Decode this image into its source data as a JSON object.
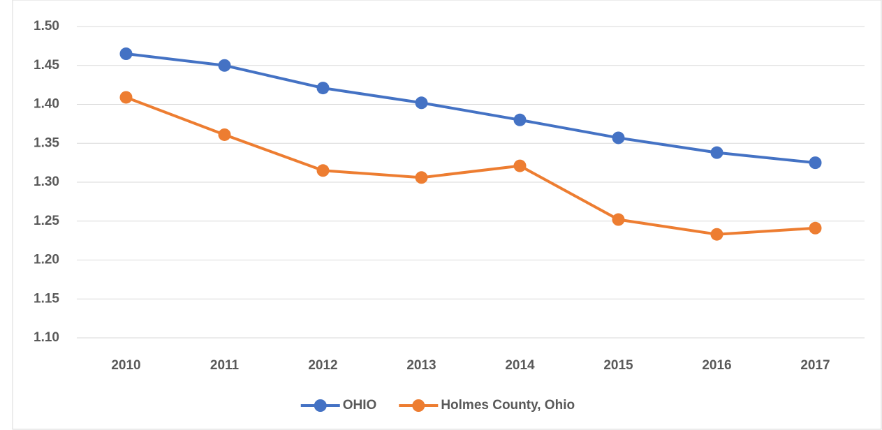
{
  "chart_data": {
    "type": "line",
    "categories": [
      "2010",
      "2011",
      "2012",
      "2013",
      "2014",
      "2015",
      "2016",
      "2017"
    ],
    "series": [
      {
        "name": "OHIO",
        "color": "#4472c4",
        "values": [
          1.465,
          1.45,
          1.421,
          1.402,
          1.38,
          1.357,
          1.338,
          1.325
        ]
      },
      {
        "name": "Holmes County, Ohio",
        "color": "#ed7d31",
        "values": [
          1.409,
          1.361,
          1.315,
          1.306,
          1.321,
          1.252,
          1.233,
          1.241
        ]
      }
    ],
    "ylim": [
      1.1,
      1.5
    ],
    "yticks": [
      {
        "value": 1.1,
        "label": "1.10"
      },
      {
        "value": 1.15,
        "label": "1.15"
      },
      {
        "value": 1.2,
        "label": "1.20"
      },
      {
        "value": 1.25,
        "label": "1.25"
      },
      {
        "value": 1.3,
        "label": "1.30"
      },
      {
        "value": 1.35,
        "label": "1.35"
      },
      {
        "value": 1.4,
        "label": "1.40"
      },
      {
        "value": 1.45,
        "label": "1.45"
      },
      {
        "value": 1.5,
        "label": "1.50"
      }
    ],
    "grid": true,
    "legend": "bottom"
  }
}
